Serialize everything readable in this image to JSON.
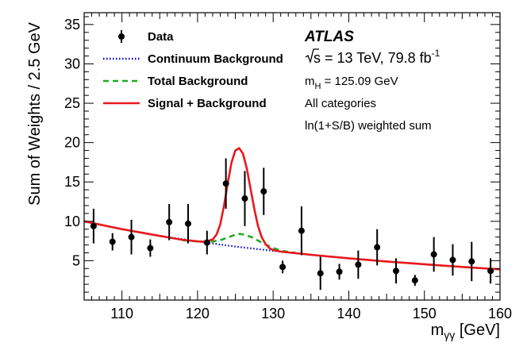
{
  "chart_data": {
    "type": "scatter",
    "experiment": "ATLAS",
    "energy_label": "s",
    "energy_value": " = 13 TeV, 79.8 fb",
    "energy_exp": "-1",
    "annotations": [
      "m",
      "H",
      " = 125.09 GeV",
      "All categories",
      "ln(1+S/B) weighted sum"
    ],
    "xlabel": "m",
    "xlabel_sub": "γγ",
    "xlabel_unit": " [GeV]",
    "ylabel": "Sum of Weights / 2.5 GeV",
    "xlim": [
      105,
      160
    ],
    "ylim": [
      0,
      36.5
    ],
    "x_ticks": [
      110,
      120,
      130,
      140,
      150,
      160
    ],
    "y_ticks": [
      5,
      10,
      15,
      20,
      25,
      30,
      35
    ],
    "legend": [
      {
        "label": "Data",
        "style": "marker"
      },
      {
        "label": "Continuum Background",
        "style": "dotted",
        "color": "#0000cc"
      },
      {
        "label": "Total Background",
        "style": "dashed",
        "color": "#22aa22"
      },
      {
        "label": "Signal + Background",
        "style": "solid",
        "color": "#e8191e"
      }
    ],
    "data_points": [
      {
        "x": 106.25,
        "y": 9.4,
        "err": 2.2
      },
      {
        "x": 108.75,
        "y": 7.4,
        "err": 1.1
      },
      {
        "x": 111.25,
        "y": 8.0,
        "err": 2.2
      },
      {
        "x": 113.75,
        "y": 6.6,
        "err": 1.1
      },
      {
        "x": 116.25,
        "y": 9.9,
        "err": 2.3
      },
      {
        "x": 118.75,
        "y": 9.7,
        "err": 2.5
      },
      {
        "x": 121.25,
        "y": 7.3,
        "err": 1.5
      },
      {
        "x": 123.75,
        "y": 14.8,
        "err": 3.2
      },
      {
        "x": 126.25,
        "y": 12.9,
        "err": 3.5
      },
      {
        "x": 128.75,
        "y": 13.8,
        "err": 3.0
      },
      {
        "x": 131.25,
        "y": 4.2,
        "err": 0.8
      },
      {
        "x": 133.75,
        "y": 8.8,
        "err": 3.1
      },
      {
        "x": 136.25,
        "y": 3.4,
        "err": 2.1
      },
      {
        "x": 138.75,
        "y": 3.6,
        "err": 1.0
      },
      {
        "x": 141.25,
        "y": 4.5,
        "err": 1.8
      },
      {
        "x": 143.75,
        "y": 6.7,
        "err": 2.3
      },
      {
        "x": 146.25,
        "y": 3.7,
        "err": 1.6
      },
      {
        "x": 148.75,
        "y": 2.5,
        "err": 0.7
      },
      {
        "x": 151.25,
        "y": 5.8,
        "err": 2.2
      },
      {
        "x": 153.75,
        "y": 5.1,
        "err": 2.0
      },
      {
        "x": 156.25,
        "y": 4.9,
        "err": 2.5
      },
      {
        "x": 158.75,
        "y": 3.7,
        "err": 1.6
      }
    ],
    "continuum_background": {
      "x": [
        105,
        110,
        115,
        120,
        125,
        130,
        135,
        140,
        145,
        150,
        155,
        160
      ],
      "y": [
        10.0,
        9.0,
        8.15,
        7.45,
        6.8,
        6.25,
        5.75,
        5.3,
        4.9,
        4.55,
        4.2,
        3.9
      ]
    },
    "total_background": {
      "x": [
        118,
        120,
        121,
        122,
        123,
        124,
        125,
        125.5,
        126,
        127,
        128,
        129,
        130,
        131,
        132,
        133
      ],
      "y": [
        7.6,
        7.45,
        7.4,
        7.45,
        7.6,
        7.95,
        8.3,
        8.4,
        8.35,
        8.05,
        7.55,
        7.05,
        6.6,
        6.3,
        6.1,
        6.0
      ]
    },
    "signal_plus_background": {
      "x": [
        105,
        110,
        115,
        118,
        120,
        121,
        122,
        122.5,
        123,
        123.5,
        124,
        124.5,
        125,
        125.5,
        126,
        126.5,
        127,
        127.5,
        128,
        128.5,
        129,
        129.5,
        130,
        131,
        132,
        135,
        140,
        145,
        150,
        155,
        160
      ],
      "y": [
        10.0,
        9.0,
        8.15,
        7.65,
        7.45,
        7.4,
        7.7,
        8.3,
        9.6,
        12.0,
        14.9,
        17.5,
        19.0,
        19.3,
        18.6,
        16.8,
        14.2,
        11.6,
        9.4,
        7.95,
        7.1,
        6.6,
        6.35,
        6.15,
        6.05,
        5.75,
        5.3,
        4.9,
        4.55,
        4.2,
        3.9
      ]
    }
  }
}
